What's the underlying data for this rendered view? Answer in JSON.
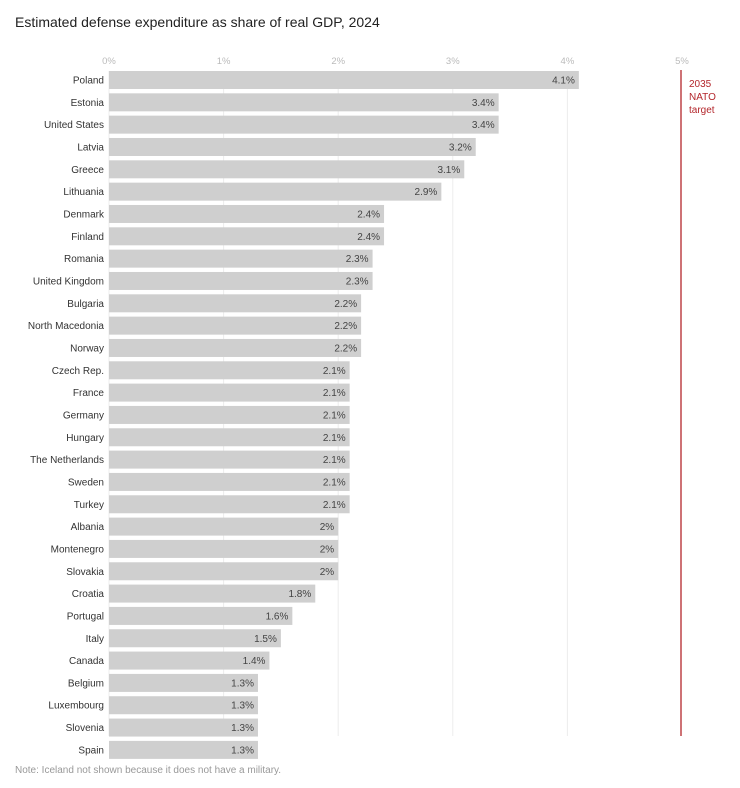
{
  "chart_data": {
    "type": "bar",
    "orientation": "horizontal",
    "title": "Estimated defense expenditure as share of real GDP, 2024",
    "xlabel": "",
    "ylabel": "",
    "xlim": [
      0,
      5
    ],
    "x_ticks": [
      "0%",
      "1%",
      "2%",
      "3%",
      "4%",
      "5%"
    ],
    "grid": true,
    "categories": [
      "Poland",
      "Estonia",
      "United States",
      "Latvia",
      "Greece",
      "Lithuania",
      "Denmark",
      "Finland",
      "Romania",
      "United Kingdom",
      "Bulgaria",
      "North Macedonia",
      "Norway",
      "Czech Rep.",
      "France",
      "Germany",
      "Hungary",
      "The Netherlands",
      "Sweden",
      "Turkey",
      "Albania",
      "Montenegro",
      "Slovakia",
      "Croatia",
      "Portugal",
      "Italy",
      "Canada",
      "Belgium",
      "Luxembourg",
      "Slovenia",
      "Spain"
    ],
    "values": [
      4.1,
      3.4,
      3.4,
      3.2,
      3.1,
      2.9,
      2.4,
      2.4,
      2.3,
      2.3,
      2.2,
      2.2,
      2.2,
      2.1,
      2.1,
      2.1,
      2.1,
      2.1,
      2.1,
      2.1,
      2,
      2,
      2,
      1.8,
      1.6,
      1.5,
      1.4,
      1.3,
      1.3,
      1.3,
      1.3
    ],
    "value_labels": [
      "4.1%",
      "3.4%",
      "3.4%",
      "3.2%",
      "3.1%",
      "2.9%",
      "2.4%",
      "2.4%",
      "2.3%",
      "2.3%",
      "2.2%",
      "2.2%",
      "2.2%",
      "2.1%",
      "2.1%",
      "2.1%",
      "2.1%",
      "2.1%",
      "2.1%",
      "2.1%",
      "2%",
      "2%",
      "2%",
      "1.8%",
      "1.6%",
      "1.5%",
      "1.4%",
      "1.3%",
      "1.3%",
      "1.3%",
      "1.3%"
    ],
    "reference_line": {
      "value": 5,
      "label": [
        "2035",
        "NATO",
        "target"
      ]
    },
    "note": "Note: Iceland not shown because it does not have a military.",
    "colors": {
      "bar": "#cfcfcf",
      "reference": "#b3262b",
      "grid": "#ececec"
    }
  }
}
